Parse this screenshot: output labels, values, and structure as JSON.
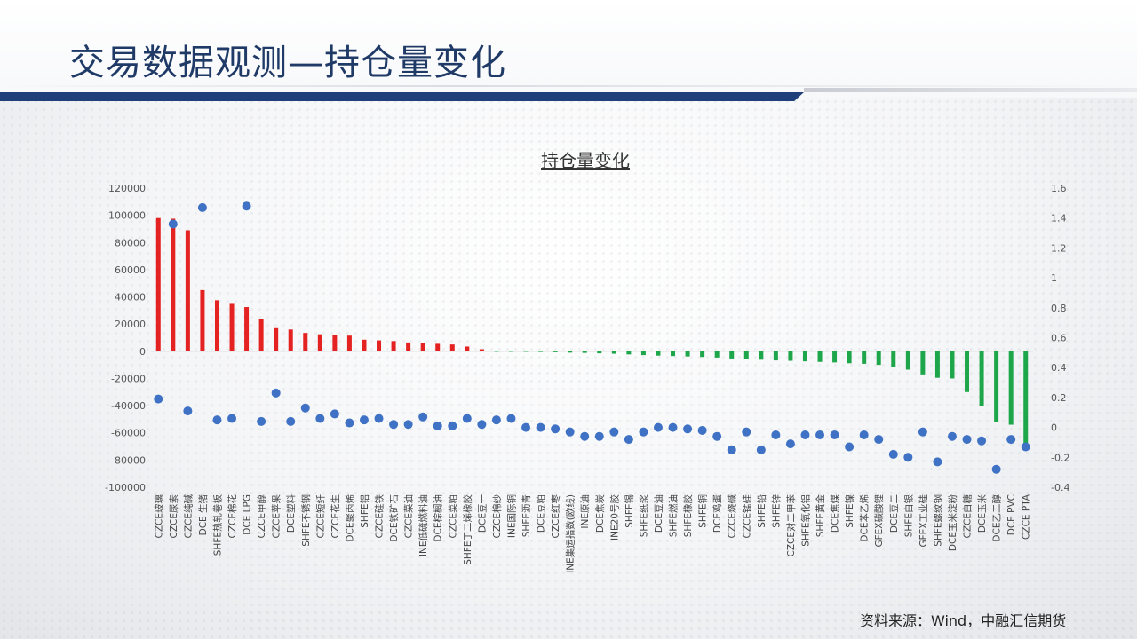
{
  "slide": {
    "title": "交易数据观测—持仓量变化",
    "source": "资料来源：Wind，中融汇信期货"
  },
  "colors": {
    "title": "#1f3a66",
    "positive_bar": "#e52222",
    "negative_bar": "#1ea64a",
    "dot": "#3f72c4"
  },
  "chart_data": {
    "type": "bar",
    "title": "持仓量变化",
    "xlabel": "",
    "ylabel": "",
    "ylim": [
      -100000,
      120000
    ],
    "y2lim": [
      -0.4,
      1.6
    ],
    "yticks": [
      "120000",
      "100000",
      "80000",
      "60000",
      "40000",
      "20000",
      "0",
      "-20000",
      "-40000",
      "-60000",
      "-80000",
      "-100000"
    ],
    "y2ticks": [
      "1.6",
      "1.4",
      "1.2",
      "1",
      "0.8",
      "0.6",
      "0.4",
      "0.2",
      "0",
      "-0.2",
      "-0.4"
    ],
    "grid": false,
    "legend": "none",
    "categories": [
      "CZCE玻璃",
      "CZCE尿素",
      "CZCE纯碱",
      "DCE 生猪",
      "SHFE热轧卷板",
      "CZCE棉花",
      "DCE LPG",
      "CZCE甲醇",
      "CZCE苹果",
      "DCE塑料",
      "SHFE不锈钢",
      "CZCE短纤",
      "CZCE花生",
      "DCE聚丙烯",
      "SHFE铝",
      "CZCE硅铁",
      "DCE铁矿石",
      "CZCE菜油",
      "INE低硫燃料油",
      "DCE棕榈油",
      "CZCE菜粕",
      "SHFE丁二烯橡胶",
      "DCE豆一",
      "CZCE棉纱",
      "INE国际铜",
      "SHFE沥青",
      "DCE豆粕",
      "CZCE红枣",
      "INE集运指数(欧线)",
      "INE原油",
      "DCE焦炭",
      "INE20号胶",
      "SHFE锡",
      "SHFE纸浆",
      "DCE豆油",
      "SHFE燃油",
      "SHFE橡胶",
      "SHFE铜",
      "DCE鸡蛋",
      "CZCE烧碱",
      "CZCE锰硅",
      "SHFE铅",
      "SHFE锌",
      "CZCE对二甲苯",
      "SHFE氧化铝",
      "SHFE黄金",
      "DCE焦煤",
      "SHFE镍",
      "DCE苯乙烯",
      "GFEX碳酸锂",
      "DCE豆二",
      "SHFE白银",
      "GFEX工业硅",
      "SHFE螺纹钢",
      "DCE玉米淀粉",
      "CZCE白糖",
      "DCE玉米",
      "DCE乙二醇",
      "DCE PVC",
      "CZCE PTA"
    ],
    "series": [
      {
        "axis": "left",
        "type": "bar",
        "values": [
          98000,
          97500,
          89000,
          45000,
          37500,
          35500,
          32500,
          24000,
          17000,
          16000,
          13500,
          12500,
          12000,
          11500,
          8500,
          8000,
          7500,
          6500,
          6000,
          5500,
          5000,
          3500,
          1500,
          -100,
          -300,
          -400,
          -500,
          -700,
          -1000,
          -1200,
          -1500,
          -1800,
          -2300,
          -2800,
          -3200,
          -3500,
          -3800,
          -4200,
          -4600,
          -5300,
          -5800,
          -6200,
          -6700,
          -7000,
          -7400,
          -7800,
          -8200,
          -8800,
          -9200,
          -10000,
          -11500,
          -13500,
          -17000,
          -19500,
          -20000,
          -30000,
          -40000,
          -52000,
          -54000,
          -70000
        ]
      },
      {
        "axis": "right",
        "type": "scatter",
        "values": [
          0.19,
          1.36,
          0.11,
          1.47,
          0.05,
          0.06,
          1.48,
          0.04,
          0.23,
          0.04,
          0.13,
          0.06,
          0.09,
          0.03,
          0.05,
          0.06,
          0.02,
          0.02,
          0.07,
          0.01,
          0.01,
          0.06,
          0.02,
          0.05,
          0.06,
          0.0,
          0.0,
          -0.01,
          -0.03,
          -0.06,
          -0.06,
          -0.03,
          -0.08,
          -0.03,
          0.0,
          0.0,
          -0.01,
          -0.02,
          -0.06,
          -0.15,
          -0.03,
          -0.15,
          -0.05,
          -0.11,
          -0.05,
          -0.05,
          -0.05,
          -0.13,
          -0.05,
          -0.08,
          -0.18,
          -0.2,
          -0.03,
          -0.23,
          -0.06,
          -0.08,
          -0.09,
          -0.28,
          -0.08,
          -0.13
        ]
      }
    ]
  }
}
